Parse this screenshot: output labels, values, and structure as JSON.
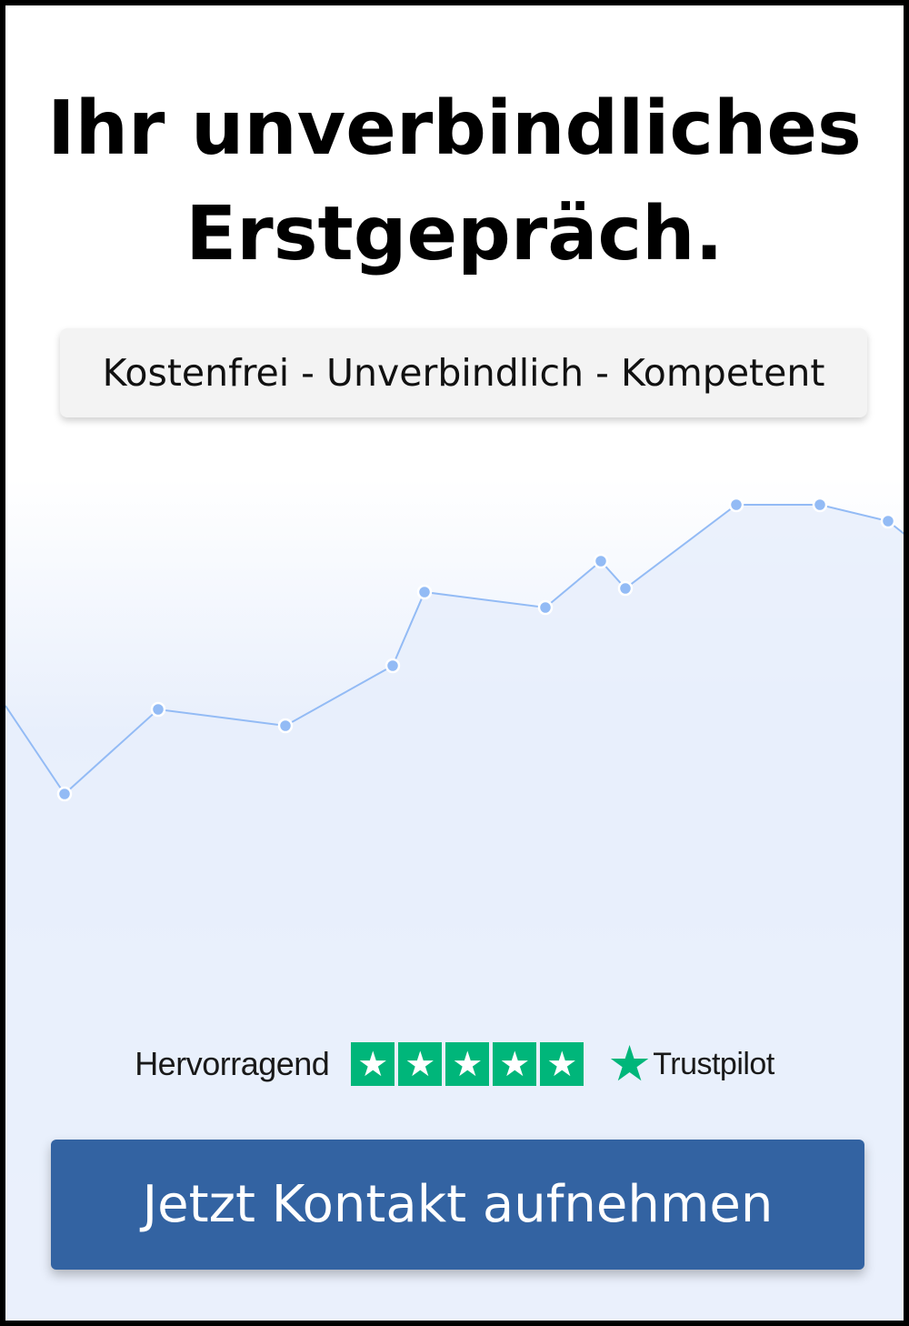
{
  "headline": {
    "line1": "Ihr unverbindliches",
    "line2": "Erstgepräch."
  },
  "tagline": "Kostenfrei - Unverbindlich - Kompetent",
  "rating": {
    "label": "Hervorragend",
    "stars": 5,
    "star_glyph": "★",
    "brand": "Trustpilot",
    "brand_color": "#00b67a"
  },
  "cta": {
    "label": "Jetzt Kontakt aufnehmen",
    "color": "#3363a2"
  },
  "decor": {
    "line_color": "#93bbf5",
    "fill_color": "#e8effc",
    "icon": "trend-line-chart"
  }
}
